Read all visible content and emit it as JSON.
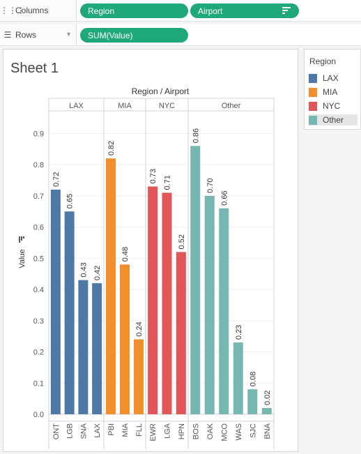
{
  "shelves": {
    "columns": {
      "label": "Columns",
      "icon": "columns-icon",
      "pills": [
        "Region",
        "Airport"
      ]
    },
    "rows": {
      "label": "Rows",
      "icon": "rows-icon",
      "pills": [
        "SUM(Value)"
      ]
    }
  },
  "sheet": {
    "title": "Sheet 1"
  },
  "legend": {
    "title": "Region",
    "items": [
      {
        "label": "LAX",
        "color": "#4e79a7"
      },
      {
        "label": "MIA",
        "color": "#f28e2b"
      },
      {
        "label": "NYC",
        "color": "#e15759"
      },
      {
        "label": "Other",
        "color": "#76b7b2"
      }
    ]
  },
  "chart_data": {
    "type": "bar",
    "title": "Region / Airport",
    "xlabel": "",
    "ylabel": "Value",
    "ylim": [
      0,
      0.95
    ],
    "yticks": [
      "0.0",
      "0.1",
      "0.2",
      "0.3",
      "0.4",
      "0.5",
      "0.6",
      "0.7",
      "0.8",
      "0.9"
    ],
    "grid": true,
    "groups": [
      {
        "name": "LAX",
        "color": "#4e79a7",
        "categories": [
          "ONT",
          "LGB",
          "SNA",
          "LAX"
        ],
        "values": [
          0.72,
          0.65,
          0.43,
          0.42
        ],
        "labels": [
          "0.72",
          "0.65",
          "0.43",
          "0.42"
        ]
      },
      {
        "name": "MIA",
        "color": "#f28e2b",
        "categories": [
          "PBI",
          "MIA",
          "FLL"
        ],
        "values": [
          0.82,
          0.48,
          0.24
        ],
        "labels": [
          "0.82",
          "0.48",
          "0.24"
        ]
      },
      {
        "name": "NYC",
        "color": "#e15759",
        "categories": [
          "EWR",
          "LGA",
          "HPN"
        ],
        "values": [
          0.73,
          0.71,
          0.52
        ],
        "labels": [
          "0.73",
          "0.71",
          "0.52"
        ]
      },
      {
        "name": "Other",
        "color": "#76b7b2",
        "categories": [
          "BOS",
          "OAK",
          "MCO",
          "WAS",
          "SJC",
          "BNA"
        ],
        "values": [
          0.86,
          0.7,
          0.66,
          0.23,
          0.08,
          0.02
        ],
        "labels": [
          "0.86",
          "0.70",
          "0.66",
          "0.23",
          "0.08",
          "0.02"
        ]
      }
    ]
  }
}
